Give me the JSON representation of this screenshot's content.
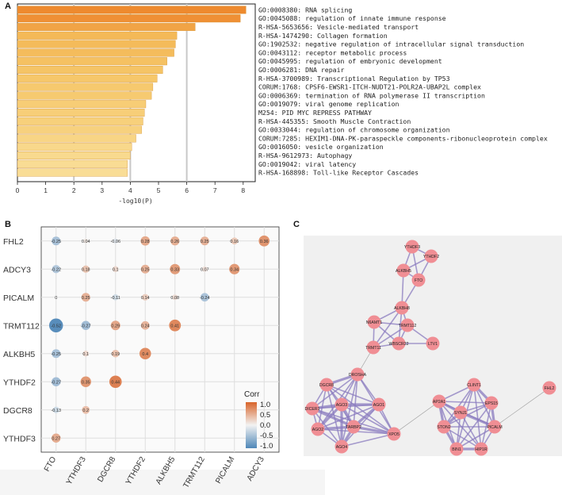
{
  "panels": {
    "a": "A",
    "b": "B",
    "c": "C"
  },
  "chart_data": [
    {
      "type": "bar",
      "orientation": "horizontal",
      "xlabel": "-log10(P)",
      "xticks": [
        "0",
        "1",
        "2",
        "3",
        "4",
        "5",
        "6",
        "7",
        "8"
      ],
      "xlim": [
        0,
        8.3
      ],
      "categories": [
        "GO:0008380: RNA splicing",
        "GO:0045088: regulation of innate immune response",
        "R-HSA-5653656: Vesicle-mediated transport",
        "R-HSA-1474290: Collagen formation",
        "GO:1902532: negative regulation of intracellular signal transduction",
        "GO:0043112: receptor metabolic process",
        "GO:0045995: regulation of embryonic development",
        "GO:0006281: DNA repair",
        "R-HSA-3700989: Transcriptional Regulation by TP53",
        "CORUM:1768: CPSF6-EWSR1-ITCH-NUDT21-POLR2A-UBAP2L complex",
        "GO:0006369: termination of RNA polymerase II transcription",
        "GO:0019079: viral genome replication",
        "M254: PID MYC REPRESS PATHWAY",
        "R-HSA-445355: Smooth Muscle Contraction",
        "GO:0033044: regulation of chromosome organization",
        "CORUM:7285: HEXIM1-DNA-PK-paraspeckle components-ribonucleoprotein complex",
        "GO:0016050: vesicle organization",
        "R-HSA-9612973: Autophagy",
        "GO:0019042: viral latency",
        "R-HSA-168898: Toll-like Receptor Cascades"
      ],
      "values": [
        8.1,
        7.9,
        6.3,
        5.65,
        5.6,
        5.55,
        5.3,
        5.15,
        4.95,
        4.8,
        4.75,
        4.55,
        4.5,
        4.45,
        4.4,
        4.2,
        4.05,
        4.0,
        3.9,
        3.9
      ],
      "colors": [
        "#ee8a2e",
        "#ef9035",
        "#f1a446",
        "#f4b957",
        "#f4bb5a",
        "#f4bc5c",
        "#f5c162",
        "#f5c466",
        "#f6c76a",
        "#f6c96e",
        "#f6ca70",
        "#f7cd76",
        "#f7ce78",
        "#f7d07b",
        "#f7d17e",
        "#f8d585",
        "#f8d88b",
        "#f8d98e",
        "#f9dc94",
        "#f9dd96"
      ]
    },
    {
      "type": "heatmap",
      "subtype": "correlation-dot-matrix",
      "rows": [
        "FHL2",
        "ADCY3",
        "PICALM",
        "TRMT112",
        "ALKBH5",
        "YTHDF2",
        "DGCR8",
        "YTHDF3"
      ],
      "cols": [
        "FTO",
        "YTHDF3",
        "DGCR8",
        "YTHDF2",
        "ALKBH5",
        "TRMT112",
        "PICALM",
        "ADCY3"
      ],
      "cells": [
        {
          "r": "FHL2",
          "c": "FTO",
          "v": -0.25,
          "label": "-0.25"
        },
        {
          "r": "FHL2",
          "c": "YTHDF3",
          "v": 0.04,
          "label": "0.04"
        },
        {
          "r": "FHL2",
          "c": "DGCR8",
          "v": -0.06,
          "label": "-0.06"
        },
        {
          "r": "FHL2",
          "c": "YTHDF2",
          "v": 0.28,
          "label": "0.28"
        },
        {
          "r": "FHL2",
          "c": "ALKBH5",
          "v": 0.26,
          "label": "0.26"
        },
        {
          "r": "FHL2",
          "c": "TRMT112",
          "v": 0.25,
          "label": "0.25"
        },
        {
          "r": "FHL2",
          "c": "PICALM",
          "v": 0.16,
          "label": "0.16"
        },
        {
          "r": "FHL2",
          "c": "ADCY3",
          "v": 0.36,
          "label": "0.36"
        },
        {
          "r": "ADCY3",
          "c": "FTO",
          "v": -0.22,
          "label": "-0.22"
        },
        {
          "r": "ADCY3",
          "c": "YTHDF3",
          "v": 0.18,
          "label": "0.18"
        },
        {
          "r": "ADCY3",
          "c": "DGCR8",
          "v": 0.1,
          "label": "0.1"
        },
        {
          "r": "ADCY3",
          "c": "YTHDF2",
          "v": 0.25,
          "label": "0.25"
        },
        {
          "r": "ADCY3",
          "c": "ALKBH5",
          "v": 0.33,
          "label": "0.33"
        },
        {
          "r": "ADCY3",
          "c": "TRMT112",
          "v": 0.07,
          "label": "0.07"
        },
        {
          "r": "ADCY3",
          "c": "PICALM",
          "v": 0.34,
          "label": "0.34"
        },
        {
          "r": "PICALM",
          "c": "FTO",
          "v": 0,
          "label": "0"
        },
        {
          "r": "PICALM",
          "c": "YTHDF3",
          "v": 0.25,
          "label": "0.25"
        },
        {
          "r": "PICALM",
          "c": "DGCR8",
          "v": -0.11,
          "label": "-0.11"
        },
        {
          "r": "PICALM",
          "c": "YTHDF2",
          "v": 0.14,
          "label": "0.14"
        },
        {
          "r": "PICALM",
          "c": "ALKBH5",
          "v": 0.08,
          "label": "0.08"
        },
        {
          "r": "PICALM",
          "c": "TRMT112",
          "v": -0.24,
          "label": "-0.24"
        },
        {
          "r": "TRMT112",
          "c": "FTO",
          "v": -0.52,
          "label": "-0.52"
        },
        {
          "r": "TRMT112",
          "c": "YTHDF3",
          "v": -0.27,
          "label": "-0.27"
        },
        {
          "r": "TRMT112",
          "c": "DGCR8",
          "v": 0.29,
          "label": "0.29"
        },
        {
          "r": "TRMT112",
          "c": "YTHDF2",
          "v": 0.24,
          "label": "0.24"
        },
        {
          "r": "TRMT112",
          "c": "ALKBH5",
          "v": 0.41,
          "label": "0.41"
        },
        {
          "r": "ALKBH5",
          "c": "FTO",
          "v": -0.25,
          "label": "-0.25"
        },
        {
          "r": "ALKBH5",
          "c": "YTHDF3",
          "v": 0.1,
          "label": "0.1"
        },
        {
          "r": "ALKBH5",
          "c": "DGCR8",
          "v": 0.19,
          "label": "0.19"
        },
        {
          "r": "ALKBH5",
          "c": "YTHDF2",
          "v": 0.4,
          "label": "0.4"
        },
        {
          "r": "YTHDF2",
          "c": "FTO",
          "v": -0.27,
          "label": "-0.27"
        },
        {
          "r": "YTHDF2",
          "c": "YTHDF3",
          "v": 0.35,
          "label": "0.35"
        },
        {
          "r": "YTHDF2",
          "c": "DGCR8",
          "v": 0.44,
          "label": "0.44"
        },
        {
          "r": "DGCR8",
          "c": "FTO",
          "v": -0.13,
          "label": "-0.13"
        },
        {
          "r": "DGCR8",
          "c": "YTHDF3",
          "v": 0.2,
          "label": "0.2"
        },
        {
          "r": "YTHDF3",
          "c": "FTO",
          "v": 0.27,
          "label": "0.27"
        }
      ],
      "legend": {
        "title": "Corr",
        "ticks": [
          "1.0",
          "0.5",
          "0.0",
          "-0.5",
          "-1.0"
        ],
        "low_color": "#4f87b8",
        "mid_color": "#f2f2f2",
        "high_color": "#d8642a"
      }
    }
  ],
  "network": {
    "node_color": "#f08e94",
    "edge_color": "#8a7bbf",
    "nodes": [
      "YTHDF3",
      "YTHDF2",
      "ALKBH5",
      "FTO",
      "ALKBH8",
      "N6AMT1",
      "TRMT112",
      "TRMT11",
      "WBSCR22",
      "LTV1",
      "DROSHA",
      "DGCR8",
      "AGO3",
      "AGO1",
      "DICER1",
      "AGO2",
      "TARBP2",
      "XPO5",
      "AGO4",
      "CLINT1",
      "AP2A1",
      "EPS15",
      "SYNJ1",
      "STON2",
      "PICALM",
      "BIN1",
      "HIP1R",
      "FHL2"
    ]
  }
}
